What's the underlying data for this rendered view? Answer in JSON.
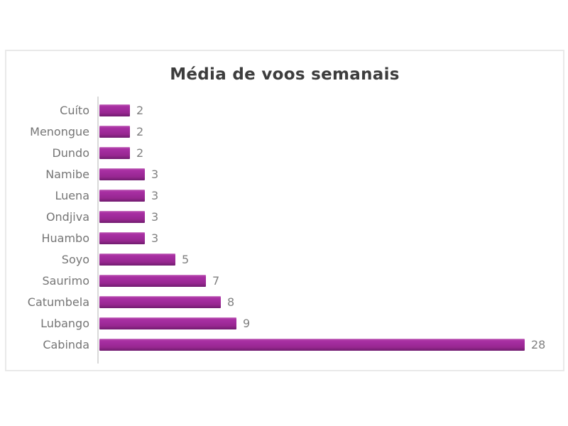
{
  "page": {
    "background_color": "#ffffff"
  },
  "chart_data": {
    "type": "bar",
    "orientation": "horizontal",
    "title": "Média de voos semanais",
    "categories": [
      "Cuíto",
      "Menongue",
      "Dundo",
      "Namibe",
      "Luena",
      "Ondjiva",
      "Huambo",
      "Soyo",
      "Saurimo",
      "Catumbela",
      "Lubango",
      "Cabinda"
    ],
    "values": [
      2,
      2,
      2,
      3,
      3,
      3,
      3,
      5,
      7,
      8,
      9,
      28
    ],
    "value_labels": [
      "2",
      "2",
      "2",
      "3",
      "3",
      "3",
      "3",
      "5",
      "7",
      "8",
      "9",
      "28"
    ],
    "xlabel": "",
    "ylabel": "",
    "xlim": [
      0,
      28
    ],
    "grid": false,
    "legend": false,
    "value_labels_shown": true,
    "bar_color": "#a02b9b",
    "bar_gradient_top": "#bb55b2",
    "bar_gradient_bottom": "#701b6e",
    "title_color": "#3d3d3d",
    "category_label_color": "#757575",
    "value_label_color": "#808080",
    "axis_line_color": "#d9d9d9",
    "frame_border_color": "#e9e9e9"
  }
}
